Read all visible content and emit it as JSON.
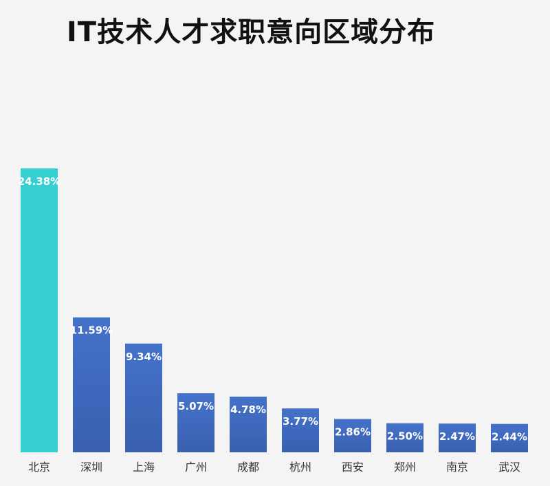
{
  "chart_data": {
    "type": "bar",
    "title": "IT技术人才求职意向区域分布",
    "categories": [
      "北京",
      "深圳",
      "上海",
      "广州",
      "成都",
      "杭州",
      "西安",
      "郑州",
      "南京",
      "武汉"
    ],
    "values": [
      24.38,
      11.59,
      9.34,
      5.07,
      4.78,
      3.77,
      2.86,
      2.5,
      2.47,
      2.44
    ],
    "data_labels": [
      "24.38%",
      "11.59%",
      "9.34%",
      "5.07%",
      "4.78%",
      "3.77%",
      "2.86%",
      "2.50%",
      "2.47%",
      "2.44%"
    ],
    "unit": "%",
    "xlabel": "",
    "ylabel": "",
    "ylim": [
      0,
      24.38
    ],
    "grid": false,
    "legend": "none",
    "colors": {
      "highlight": "#36cfd1",
      "bar_top": "#4472c9",
      "bar_bottom": "#3a5fb0",
      "label": "#ffffff",
      "axis_text": "#333333"
    }
  }
}
